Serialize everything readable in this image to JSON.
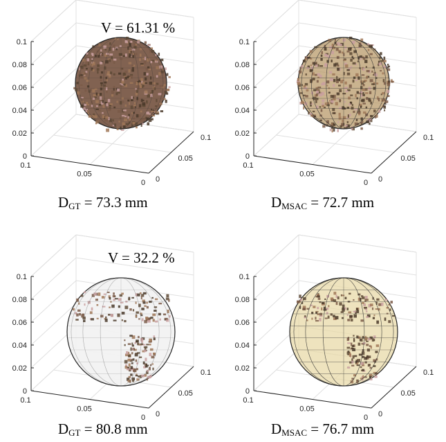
{
  "panels": [
    {
      "v_label": "V =  61.31 %",
      "caption_prefix": "D",
      "caption_sub": "GT",
      "caption_value": " = 73.3 mm",
      "style": "textured"
    },
    {
      "v_label": "",
      "caption_prefix": "D",
      "caption_sub": "MSAC",
      "caption_value": " = 72.7 mm",
      "style": "textured-mesh"
    },
    {
      "v_label": "V =  32.2 %",
      "caption_prefix": "D",
      "caption_sub": "GT",
      "caption_value": " = 80.8 mm",
      "style": "partial"
    },
    {
      "v_label": "",
      "caption_prefix": "D",
      "caption_sub": "MSAC",
      "caption_value": " = 76.7 mm",
      "style": "partial-mesh"
    }
  ],
  "axes": {
    "z_ticks": [
      "0.1",
      "0.08",
      "0.06",
      "0.04",
      "0.02",
      "0"
    ],
    "x_ticks": [
      "0.1",
      "0.05",
      "0"
    ],
    "y_ticks": [
      "0",
      "0.05",
      "0.1"
    ]
  },
  "colors": {
    "axis_line": "#222222",
    "grid_line": "#e0e0e0",
    "sphere_edge": "#222222",
    "mesh_line": "#333333",
    "texture_dark": "#4a3a2a",
    "texture_mid": "#7a5a48",
    "texture_pink": "#c9a0a0",
    "sphere_fill_mesh": "#e8d9a8",
    "sphere_fill_gray": "#f2f2f2"
  }
}
